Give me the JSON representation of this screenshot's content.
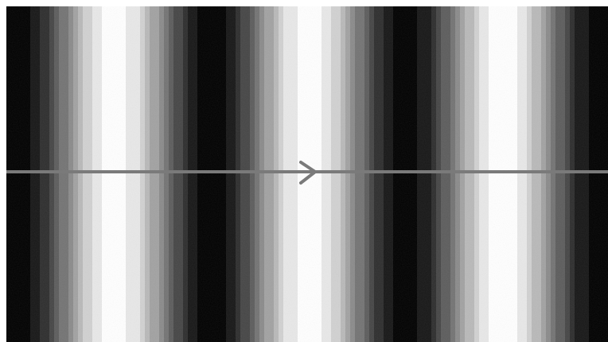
{
  "pattern": {
    "kind": "vertical-sinusoidal-grating",
    "cycles_visible": 3,
    "dark_color": "#000000",
    "light_color": "#ffffff",
    "quantized_levels": 12,
    "noise": true
  },
  "axis_line": {
    "color": "#7a7a7a",
    "direction": "right",
    "arrow_icon": "chevron-right-icon"
  }
}
